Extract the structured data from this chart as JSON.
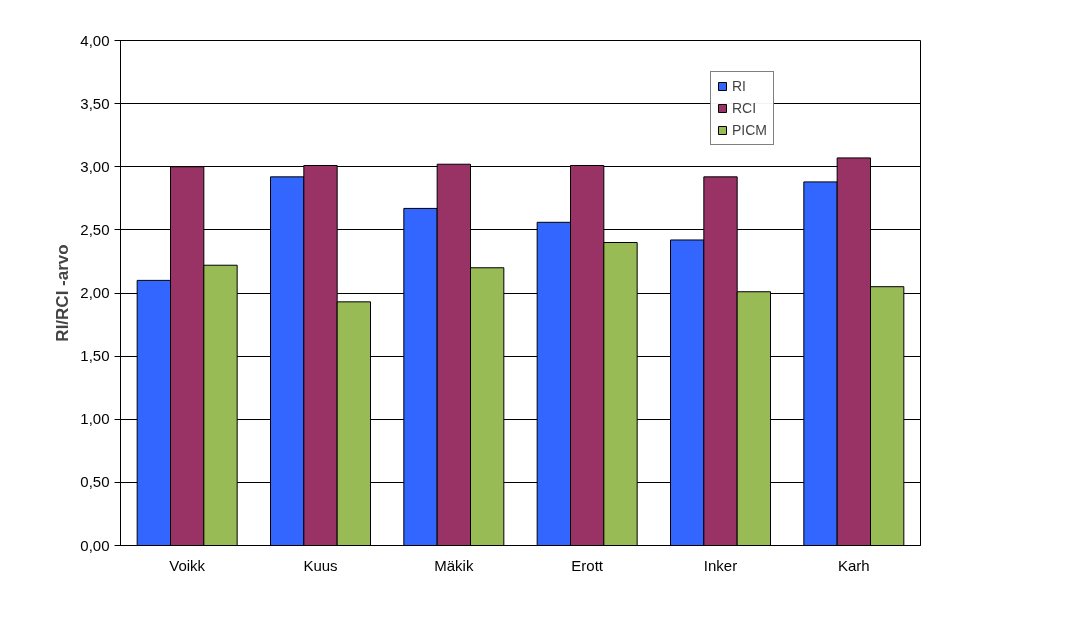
{
  "chart_data": {
    "type": "bar",
    "ylabel": "RI/RCI -arvo",
    "categories": [
      "Voikk",
      "Kuus",
      "Mäkik",
      "Erott",
      "Inker",
      "Karh"
    ],
    "series": [
      {
        "name": "RI",
        "color": "#3366ff",
        "values": [
          2.1,
          2.92,
          2.67,
          2.56,
          2.42,
          2.88
        ]
      },
      {
        "name": "RCI",
        "color": "#993366",
        "values": [
          3.0,
          3.01,
          3.02,
          3.01,
          2.92,
          3.07
        ]
      },
      {
        "name": "PICM",
        "color": "#99bb55",
        "values": [
          2.22,
          1.93,
          2.2,
          2.4,
          2.01,
          2.05
        ]
      }
    ],
    "ylim": [
      0,
      4
    ],
    "yticks": [
      {
        "value": 0,
        "label": "0,00"
      },
      {
        "value": 0.5,
        "label": "0,50"
      },
      {
        "value": 1,
        "label": "1,00"
      },
      {
        "value": 1.5,
        "label": "1,50"
      },
      {
        "value": 2,
        "label": "2,00"
      },
      {
        "value": 2.5,
        "label": "2,50"
      },
      {
        "value": 3,
        "label": "3,00"
      },
      {
        "value": 3.5,
        "label": "3,50"
      },
      {
        "value": 4,
        "label": "4,00"
      }
    ],
    "grid": "y",
    "legend": "top right"
  }
}
